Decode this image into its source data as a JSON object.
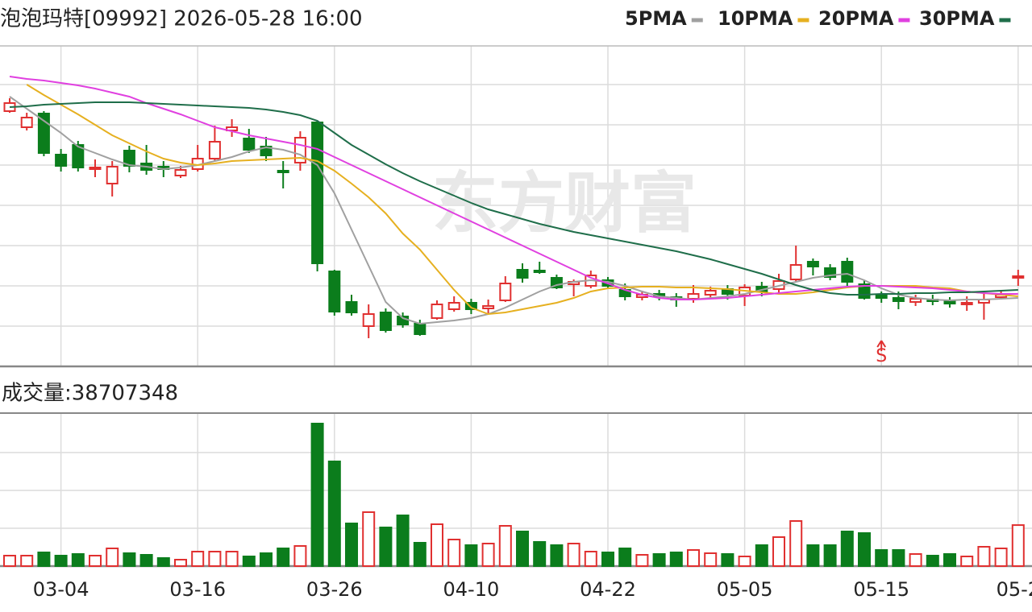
{
  "chart_data": [
    {
      "type": "candlestick",
      "title": "泡泡玛特[09992] 2026-05-28 16:00",
      "watermark": "东方财富",
      "marker_label": "S",
      "up_color": "#e03030",
      "down_color": "#0b7d1c",
      "ylim": [
        0,
        197.5
      ],
      "yticks": [
        25,
        50,
        75,
        100,
        125,
        150,
        175
      ],
      "grid": true,
      "open": [
        158.5,
        148.5,
        157,
        131.5,
        137.5,
        122.5,
        113.5,
        134,
        126,
        124,
        118.5,
        122.5,
        129,
        146.5,
        141.5,
        136.5,
        121.5,
        126.5,
        151.5,
        59,
        40,
        25,
        33.5,
        31,
        26.5,
        30,
        35.5,
        39.5,
        36,
        41,
        60,
        59.5,
        55,
        51,
        50,
        53.5,
        47.5,
        43,
        45,
        43,
        42,
        44.5,
        48,
        44,
        49.5,
        48,
        54,
        65,
        61,
        65,
        51,
        44.5,
        42.5,
        40,
        41.5,
        40.5,
        38.5,
        39.5,
        43,
        55
      ],
      "high": [
        166.5,
        157.5,
        158.5,
        135,
        140,
        128.5,
        127.5,
        137,
        137.5,
        127.5,
        124.5,
        137.5,
        149.5,
        153.5,
        147.5,
        142.5,
        127.5,
        146,
        152.5,
        60,
        44.5,
        38.5,
        36,
        33.5,
        29,
        41,
        43.5,
        42,
        41.5,
        56,
        64,
        65,
        57,
        54,
        59.5,
        55.5,
        51.5,
        47,
        47.5,
        45.5,
        50.5,
        49.5,
        50.5,
        51,
        52.5,
        57.5,
        75,
        67,
        63.5,
        67.5,
        53.5,
        46.5,
        46.5,
        44.5,
        44.5,
        43,
        43.5,
        45,
        47,
        60
      ],
      "low": [
        157.5,
        146.5,
        130.5,
        121,
        121,
        117.5,
        105.5,
        120.5,
        119,
        117.5,
        117,
        121,
        127.5,
        142.5,
        132.5,
        127.5,
        110.5,
        121.5,
        59,
        31.5,
        31.5,
        17.5,
        21,
        24,
        19,
        29,
        34,
        32.5,
        33,
        40,
        52,
        57.5,
        48,
        43.5,
        48.5,
        48.5,
        41,
        41,
        41,
        37,
        39.5,
        42.5,
        41.5,
        37.5,
        43.5,
        45,
        52.5,
        56.5,
        53.5,
        50,
        41.5,
        39.5,
        35.5,
        37.5,
        38,
        36.5,
        34.5,
        29,
        41.5,
        50
      ],
      "close": [
        163.5,
        154.5,
        132.5,
        124.5,
        123.5,
        123.5,
        124,
        124.5,
        122,
        122.5,
        122,
        129,
        139.5,
        148.5,
        134.5,
        131,
        120.5,
        142,
        64,
        34,
        33.5,
        32.5,
        22.5,
        26,
        20,
        38.5,
        39.5,
        35.5,
        37.5,
        51.5,
        55,
        58.5,
        49,
        52.5,
        56.5,
        50,
        43.5,
        44.5,
        43.5,
        41.5,
        45,
        47,
        45,
        49,
        46.5,
        53,
        63,
        62,
        55.5,
        52.5,
        42.5,
        42.5,
        40.5,
        42,
        40.5,
        39,
        39.5,
        41.5,
        44.5,
        56
      ],
      "lines": [
        {
          "name": "5PMA",
          "color": "#a0a0a0",
          "values": [
            167.5,
            160,
            152.5,
            145,
            136.5,
            132.5,
            128.5,
            125,
            124,
            122.5,
            123.5,
            125,
            127.5,
            130,
            133.5,
            136,
            134.5,
            131.5,
            125,
            107.5,
            85,
            62.5,
            40,
            30,
            26.5,
            27.5,
            28.5,
            30,
            32.5,
            36.5,
            41.5,
            46.5,
            50.5,
            52.5,
            53.5,
            52.5,
            50,
            46.5,
            43.5,
            42.5,
            41.5,
            42.5,
            43.5,
            45,
            47.5,
            50,
            52.5,
            55,
            56.5,
            57.5,
            53.5,
            48.5,
            44.5,
            42.5,
            41.5,
            41,
            41.5,
            41.5,
            42,
            42.5
          ]
        },
        {
          "name": "10PMA",
          "color": "#e6b020",
          "values": [
            null,
            175,
            168.5,
            162.5,
            156.5,
            150,
            143.5,
            138.5,
            133.5,
            129,
            126.5,
            125,
            126,
            127.5,
            128,
            128.5,
            129,
            129.5,
            127.5,
            121.5,
            113.5,
            105,
            95,
            82.5,
            72.5,
            60,
            47.5,
            36.5,
            32.5,
            33.5,
            35.5,
            37.5,
            39.5,
            42.5,
            46.5,
            48.5,
            49,
            49.5,
            49.5,
            49,
            49,
            48.5,
            48,
            47,
            46,
            45,
            45,
            46,
            47.5,
            49,
            50,
            50,
            50,
            50,
            49,
            48.5,
            46.5,
            45.5,
            44.5,
            43.5
          ]
        },
        {
          "name": "20PMA",
          "color": "#e040e0",
          "values": [
            180,
            178.5,
            177.5,
            176,
            174.5,
            172.5,
            170,
            167.5,
            163.5,
            160,
            156.5,
            152.5,
            148.5,
            146,
            143.5,
            141.5,
            139.5,
            137.5,
            135,
            130,
            125,
            120,
            115,
            110,
            105,
            100,
            95,
            90,
            85,
            80,
            75,
            70,
            65,
            60,
            55,
            51.5,
            47.5,
            44.5,
            42.5,
            41.5,
            41.5,
            42,
            42.5,
            43.5,
            44.5,
            45.5,
            46.5,
            47.5,
            48.5,
            49.5,
            50,
            50,
            49.5,
            49,
            48.5,
            47.5,
            46.5,
            45.5,
            45,
            45
          ]
        },
        {
          "name": "30PMA",
          "color": "#1f6e4a",
          "values": [
            161,
            161.5,
            162.5,
            163,
            163.5,
            164,
            164,
            164,
            163.5,
            163,
            162.5,
            162,
            161.5,
            161,
            160.5,
            159.5,
            158,
            156,
            152.5,
            145,
            137.5,
            131.5,
            125.5,
            120,
            115,
            110.5,
            106,
            101.5,
            97.5,
            94.5,
            91.5,
            88.5,
            86,
            83.5,
            81.5,
            79.5,
            77.5,
            75.5,
            73.5,
            71.5,
            69,
            66.5,
            63.5,
            60.5,
            57.5,
            54,
            50.5,
            47.5,
            45.5,
            44.5,
            44.5,
            45,
            45,
            45.5,
            45.5,
            46,
            46,
            46.5,
            47,
            47.5
          ]
        }
      ]
    },
    {
      "type": "bar",
      "title": "成交量:38707348",
      "up_color": "#e03030",
      "down_color": "#0b7d1c",
      "ylim": [
        0,
        142880000
      ],
      "yticks": [
        35720000,
        71440000,
        107160000
      ],
      "grid": true,
      "categories": [
        null,
        null,
        null,
        "03-04",
        null,
        null,
        null,
        null,
        null,
        null,
        null,
        "03-16",
        null,
        null,
        null,
        null,
        null,
        null,
        null,
        "03-26",
        null,
        null,
        null,
        null,
        null,
        null,
        null,
        "04-10",
        null,
        null,
        null,
        null,
        null,
        null,
        null,
        "04-22",
        null,
        null,
        null,
        null,
        null,
        null,
        null,
        "05-05",
        null,
        null,
        null,
        null,
        null,
        null,
        null,
        "05-15",
        null,
        null,
        null,
        null,
        null,
        null,
        null,
        "05-2"
      ],
      "values": [
        9880000,
        9880000,
        12920000,
        9880000,
        11400000,
        9880000,
        16720000,
        12160000,
        10640000,
        7600000,
        6080000,
        13680000,
        13680000,
        13680000,
        9120000,
        12160000,
        16720000,
        19000000,
        134520000,
        98800000,
        40280000,
        50920000,
        36480000,
        47880000,
        22040000,
        39520000,
        25080000,
        19760000,
        21280000,
        38000000,
        32680000,
        22800000,
        19760000,
        21280000,
        13680000,
        12920000,
        16720000,
        10640000,
        11400000,
        12920000,
        15200000,
        12160000,
        11400000,
        9120000,
        19760000,
        27360000,
        42560000,
        19760000,
        19760000,
        32680000,
        31160000,
        15200000,
        15200000,
        11400000,
        9880000,
        11400000,
        9120000,
        18240000,
        16720000,
        38707348
      ]
    }
  ]
}
